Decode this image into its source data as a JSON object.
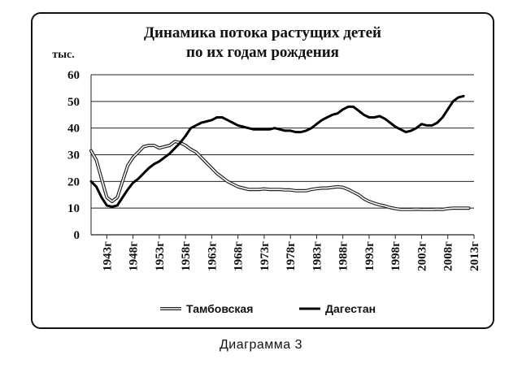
{
  "chart_data": {
    "type": "line",
    "title": [
      "Динамика потока растущих детей",
      "по их годам рождения"
    ],
    "ylabel": "тыс.",
    "xlabel": "",
    "ylim": [
      0,
      60
    ],
    "yticks": [
      "0",
      "10",
      "20",
      "30",
      "40",
      "50",
      "60"
    ],
    "xlim": [
      1940,
      2013
    ],
    "xticks": [
      "1943г",
      "1948г",
      "1953г",
      "1958г",
      "1963г",
      "1968г",
      "1973г",
      "1978г",
      "1983г",
      "1988г",
      "1993г",
      "1998г",
      "2003г",
      "2008г",
      "2013г"
    ],
    "grid": "horizontal",
    "legend": "bottom",
    "series": [
      {
        "name": "Тамбовская",
        "style": "double-outline",
        "x": [
          1940,
          1941,
          1942,
          1943,
          1944,
          1945,
          1946,
          1947,
          1948,
          1949,
          1950,
          1951,
          1952,
          1953,
          1954,
          1955,
          1956,
          1957,
          1958,
          1959,
          1960,
          1961,
          1962,
          1963,
          1964,
          1965,
          1966,
          1967,
          1968,
          1969,
          1970,
          1971,
          1972,
          1973,
          1974,
          1975,
          1976,
          1977,
          1978,
          1979,
          1980,
          1981,
          1982,
          1983,
          1984,
          1985,
          1986,
          1987,
          1988,
          1989,
          1990,
          1991,
          1992,
          1993,
          1994,
          1995,
          1996,
          1997,
          1998,
          1999,
          2000,
          2001,
          2002,
          2003,
          2004,
          2005,
          2006,
          2007,
          2008,
          2009,
          2010,
          2011,
          2012
        ],
        "values": [
          31.5,
          28,
          21,
          14,
          12.5,
          14,
          20,
          26,
          29,
          31,
          33,
          33.5,
          33.5,
          32.5,
          33,
          33.5,
          35,
          34.5,
          33.5,
          32,
          31,
          29,
          27,
          25,
          23,
          21.5,
          20,
          19,
          18,
          17.5,
          17,
          17,
          17,
          17.2,
          17,
          17,
          17,
          16.8,
          16.8,
          16.5,
          16.5,
          16.5,
          17,
          17.3,
          17.5,
          17.5,
          17.8,
          18,
          17.8,
          17,
          16,
          15,
          13.5,
          12.5,
          11.8,
          11.2,
          10.8,
          10.2,
          9.8,
          9.5,
          9.5,
          9.5,
          9.6,
          9.5,
          9.5,
          9.5,
          9.6,
          9.5,
          9.8,
          10,
          10,
          10,
          10
        ]
      },
      {
        "name": "Дагестан",
        "style": "solid",
        "x": [
          1940,
          1941,
          1942,
          1943,
          1944,
          1945,
          1946,
          1947,
          1948,
          1949,
          1950,
          1951,
          1952,
          1953,
          1954,
          1955,
          1956,
          1957,
          1958,
          1959,
          1960,
          1961,
          1962,
          1963,
          1964,
          1965,
          1966,
          1967,
          1968,
          1969,
          1970,
          1971,
          1972,
          1973,
          1974,
          1975,
          1976,
          1977,
          1978,
          1979,
          1980,
          1981,
          1982,
          1983,
          1984,
          1985,
          1986,
          1987,
          1988,
          1989,
          1990,
          1991,
          1992,
          1993,
          1994,
          1995,
          1996,
          1997,
          1998,
          1999,
          2000,
          2001,
          2002,
          2003,
          2004,
          2005,
          2006,
          2007,
          2008,
          2009,
          2010,
          2011
        ],
        "values": [
          20,
          18,
          14,
          11,
          10.5,
          11,
          14,
          17,
          19.5,
          21,
          23,
          25,
          26.5,
          27.5,
          29,
          30.5,
          32.5,
          34.5,
          37,
          40,
          41,
          42,
          42.5,
          43,
          44,
          44,
          43,
          42,
          41,
          40.5,
          40,
          39.5,
          39.5,
          39.5,
          39.5,
          40,
          39.5,
          39,
          39,
          38.5,
          38.5,
          39,
          40,
          41.5,
          43,
          44,
          45,
          45.5,
          47,
          48,
          48,
          46.5,
          45,
          44,
          44,
          44.5,
          43.5,
          42,
          40.5,
          39.5,
          38.5,
          39,
          40,
          41.5,
          41,
          41,
          42,
          44,
          47,
          50,
          51.5,
          52
        ]
      }
    ]
  },
  "caption": "Диаграмма 3"
}
